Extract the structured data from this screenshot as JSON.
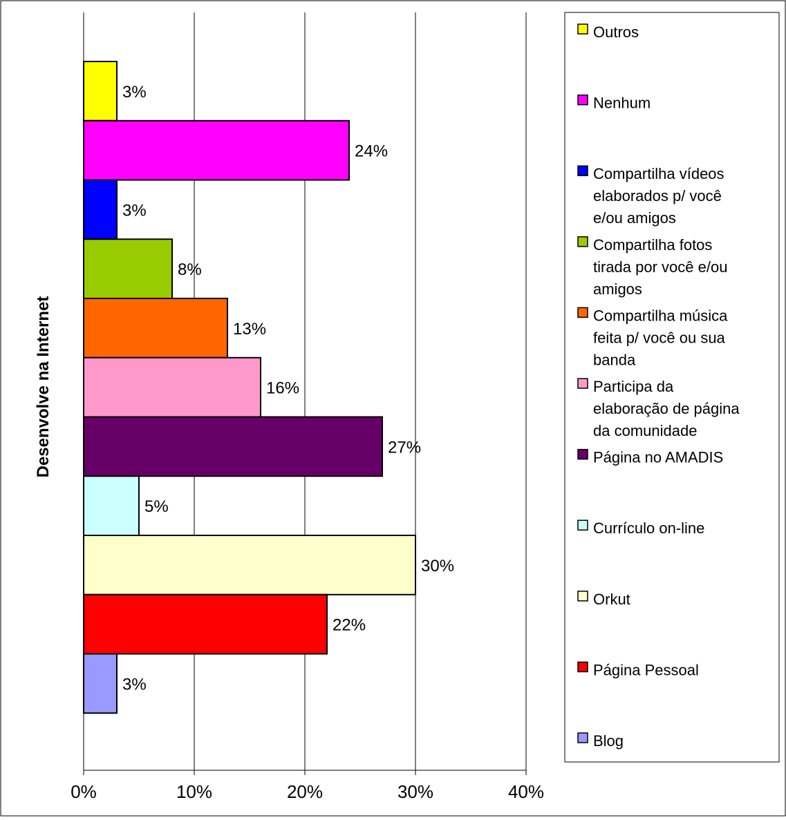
{
  "chart_data": {
    "type": "bar",
    "orientation": "horizontal",
    "ylabel": "Desenvolve na Internet",
    "xlabel": "",
    "xlim": [
      0,
      40
    ],
    "x_ticks": [
      "0%",
      "10%",
      "20%",
      "30%",
      "40%"
    ],
    "grid": "vertical",
    "legend_position": "right",
    "categories": [
      "Outros",
      "Nenhum",
      "Compartilha vídeos elaborados p/ você e/ou amigos",
      "Compartilha fotos tirada por você e/ou amigos",
      "Compartilha música feita p/ você ou sua banda",
      "Participa da elaboração de página da comunidade",
      "Página no AMADIS",
      "Currículo on-line",
      "Orkut",
      "Página Pessoal",
      "Blog"
    ],
    "values": [
      3,
      24,
      3,
      8,
      13,
      16,
      27,
      5,
      30,
      22,
      3
    ],
    "data_labels": [
      "3%",
      "24%",
      "3%",
      "8%",
      "13%",
      "16%",
      "27%",
      "5%",
      "30%",
      "22%",
      "3%"
    ],
    "colors": [
      "#FFFF00",
      "#FF00FF",
      "#0000FF",
      "#99CC00",
      "#FF6600",
      "#FF99CC",
      "#660066",
      "#CCFFFF",
      "#FFFFCC",
      "#FF0000",
      "#9999FF"
    ],
    "legend": [
      {
        "lines": [
          "Outros"
        ],
        "color": "#FFFF00"
      },
      {
        "lines": [
          "Nenhum"
        ],
        "color": "#FF00FF"
      },
      {
        "lines": [
          "Compartilha vídeos",
          "elaborados p/ você",
          "e/ou amigos"
        ],
        "color": "#0000FF"
      },
      {
        "lines": [
          "Compartilha fotos",
          "tirada por você e/ou",
          "amigos"
        ],
        "color": "#99CC00"
      },
      {
        "lines": [
          "Compartilha música",
          "feita p/ você ou sua",
          "banda"
        ],
        "color": "#FF6600"
      },
      {
        "lines": [
          "Participa da",
          "elaboração de página",
          "da comunidade"
        ],
        "color": "#FF99CC"
      },
      {
        "lines": [
          "Página no AMADIS"
        ],
        "color": "#660066"
      },
      {
        "lines": [
          "Currículo on-line"
        ],
        "color": "#CCFFFF"
      },
      {
        "lines": [
          "Orkut"
        ],
        "color": "#FFFFCC"
      },
      {
        "lines": [
          "Página Pessoal"
        ],
        "color": "#FF0000"
      },
      {
        "lines": [
          "Blog"
        ],
        "color": "#9999FF"
      }
    ]
  }
}
